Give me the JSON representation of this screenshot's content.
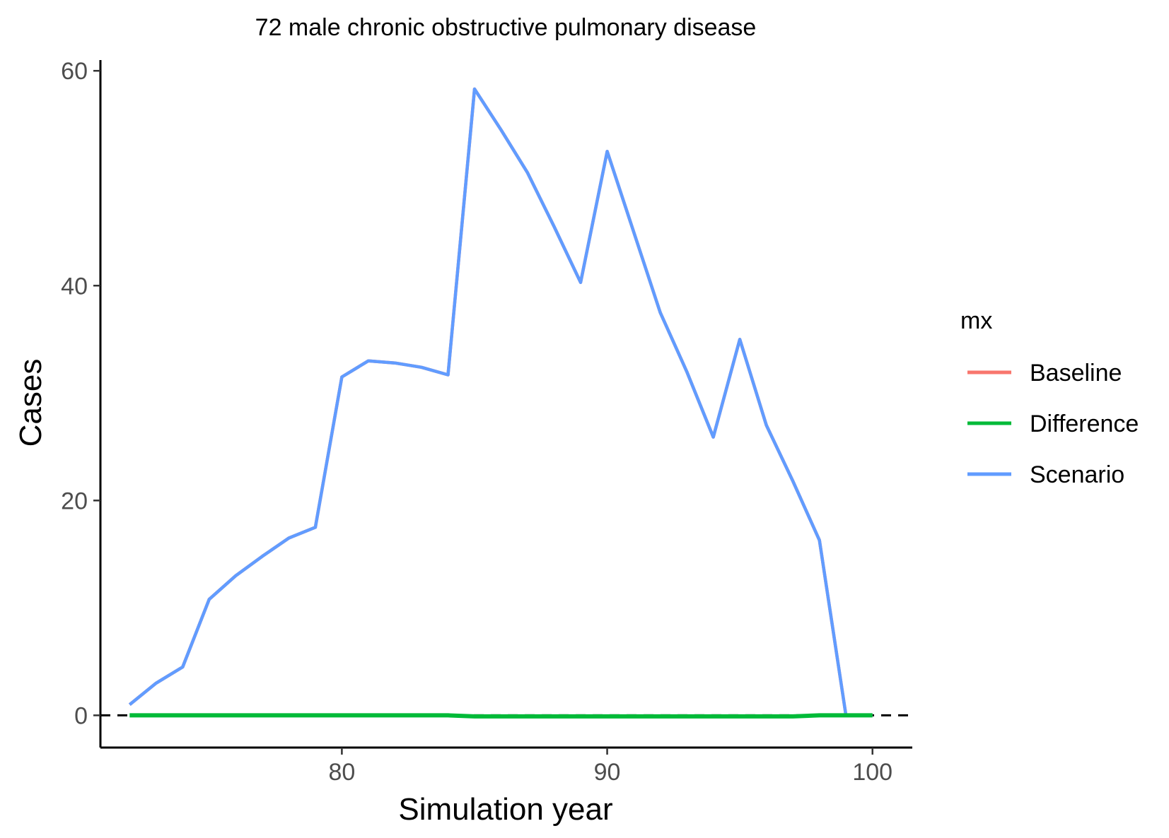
{
  "chart_data": {
    "type": "line",
    "title": "72 male chronic obstructive pulmonary disease",
    "xlabel": "Simulation year",
    "ylabel": "Cases",
    "xlim": [
      70.9,
      101.5
    ],
    "ylim": [
      -3,
      61
    ],
    "x_ticks": [
      80,
      90,
      100
    ],
    "y_ticks": [
      0,
      20,
      40,
      60
    ],
    "x_tick_labels": [
      "80",
      "90",
      "100"
    ],
    "y_tick_labels": [
      "0",
      "20",
      "40",
      "60"
    ],
    "grid": false,
    "reference_line": {
      "y": 0,
      "style": "dashed",
      "color": "#000000"
    },
    "legend": {
      "title": "mx",
      "position": "right",
      "entries": [
        "Baseline",
        "Difference",
        "Scenario"
      ]
    },
    "x": [
      72,
      73,
      74,
      75,
      76,
      77,
      78,
      79,
      80,
      81,
      82,
      83,
      84,
      85,
      86,
      87,
      88,
      89,
      90,
      91,
      92,
      93,
      94,
      95,
      96,
      97,
      98,
      99,
      100
    ],
    "series": [
      {
        "name": "Baseline",
        "color": "#F8766D",
        "values": [
          1,
          3,
          4.5,
          10.8,
          13,
          14.8,
          16.5,
          17.5,
          31.5,
          33,
          32.8,
          32.4,
          31.7,
          58.3,
          54.5,
          50.5,
          45.5,
          40.3,
          52.5,
          45,
          37.5,
          32,
          25.9,
          35,
          27,
          21.8,
          16.3,
          0,
          0
        ]
      },
      {
        "name": "Difference",
        "color": "#00BA38",
        "values": [
          0,
          0,
          0,
          0,
          0,
          0,
          0,
          0,
          0,
          0,
          0,
          0,
          0,
          -0.1,
          -0.1,
          -0.1,
          -0.1,
          -0.1,
          -0.1,
          -0.1,
          -0.1,
          -0.1,
          -0.1,
          -0.1,
          -0.1,
          -0.1,
          0,
          0,
          0
        ]
      },
      {
        "name": "Scenario",
        "color": "#619CFF",
        "values": [
          1,
          3,
          4.5,
          10.8,
          13,
          14.8,
          16.5,
          17.5,
          31.5,
          33,
          32.8,
          32.4,
          31.7,
          58.3,
          54.5,
          50.5,
          45.5,
          40.3,
          52.5,
          45,
          37.5,
          32,
          25.9,
          35,
          27,
          21.8,
          16.3,
          0,
          0
        ]
      }
    ]
  }
}
